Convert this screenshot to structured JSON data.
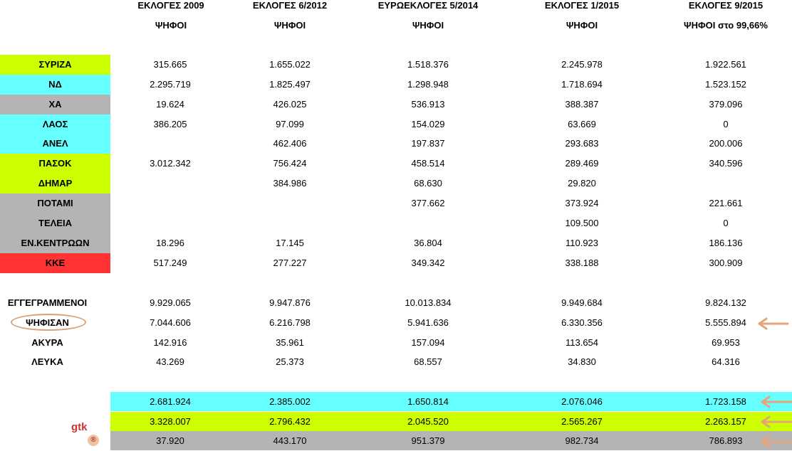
{
  "headers": [
    {
      "title": "ΕΚΛΟΓΕΣ 2009",
      "sub": "ΨΗΦΟΙ"
    },
    {
      "title": "ΕΚΛΟΓΕΣ 6/2012",
      "sub": "ΨΗΦΟΙ"
    },
    {
      "title": "ΕΥΡΩΕΚΛΟΓΕΣ 5/2014",
      "sub": "ΨΗΦΟΙ"
    },
    {
      "title": "ΕΚΛΟΓΕΣ 1/2015",
      "sub": "ΨΗΦΟΙ"
    },
    {
      "title": "ΕΚΛΟΓΕΣ 9/2015",
      "sub": "ΨΗΦΟΙ στο 99,66%"
    }
  ],
  "parties": [
    {
      "name": "ΣΥΡΙΖΑ",
      "color": "#ccff00",
      "values": [
        "315.665",
        "1.655.022",
        "1.518.376",
        "2.245.978",
        "1.922.561"
      ]
    },
    {
      "name": "ΝΔ",
      "color": "#66ffff",
      "values": [
        "2.295.719",
        "1.825.497",
        "1.298.948",
        "1.718.694",
        "1.523.152"
      ]
    },
    {
      "name": "ΧΑ",
      "color": "#b4b4b4",
      "values": [
        "19.624",
        "426.025",
        "536.913",
        "388.387",
        "379.096"
      ]
    },
    {
      "name": "ΛΑΟΣ",
      "color": "#66ffff",
      "values": [
        "386.205",
        "97.099",
        "154.029",
        "63.669",
        "0"
      ]
    },
    {
      "name": "ΑΝΕΛ",
      "color": "#66ffff",
      "values": [
        "",
        "462.406",
        "197.837",
        "293.683",
        "200.006"
      ]
    },
    {
      "name": "ΠΑΣΟΚ",
      "color": "#ccff00",
      "values": [
        "3.012.342",
        "756.424",
        "458.514",
        "289.469",
        "340.596"
      ]
    },
    {
      "name": "ΔΗΜΑΡ",
      "color": "#ccff00",
      "values": [
        "",
        "384.986",
        "68.630",
        "29.820",
        ""
      ]
    },
    {
      "name": "ΠΟΤΑΜΙ",
      "color": "#b4b4b4",
      "values": [
        "",
        "",
        "377.662",
        "373.924",
        "221.661"
      ]
    },
    {
      "name": "ΤΕΛΕΙΑ",
      "color": "#b4b4b4",
      "values": [
        "",
        "",
        "",
        "109.500",
        "0"
      ]
    },
    {
      "name": "ΕΝ.ΚΕΝΤΡΩΩΝ",
      "color": "#b4b4b4",
      "values": [
        "18.296",
        "17.145",
        "36.804",
        "110.923",
        "186.136"
      ]
    },
    {
      "name": "ΚΚΕ",
      "color": "#ff3333",
      "values": [
        "517.249",
        "277.227",
        "349.342",
        "338.188",
        "300.909"
      ]
    }
  ],
  "stats": [
    {
      "name": "ΕΓΓΕΓΡΑΜΜΕΝΟΙ",
      "values": [
        "9.929.065",
        "9.947.876",
        "10.013.834",
        "9.949.684",
        "9.824.132"
      ]
    },
    {
      "name": "ΨΗΦΙΣΑΝ",
      "values": [
        "7.044.606",
        "6.216.798",
        "5.941.636",
        "6.330.356",
        "5.555.894"
      ]
    },
    {
      "name": "ΑΚΥΡΑ",
      "values": [
        "142.916",
        "35.961",
        "157.094",
        "113.654",
        "69.953"
      ]
    },
    {
      "name": "ΛΕΥΚΑ",
      "values": [
        "43.269",
        "25.373",
        "68.557",
        "34.830",
        "64.316"
      ]
    }
  ],
  "totals": [
    {
      "color": "#66ffff",
      "values": [
        "2.681.924",
        "2.385.002",
        "1.650.814",
        "2.076.046",
        "1.723.158"
      ]
    },
    {
      "color": "#ccff00",
      "values": [
        "3.328.007",
        "2.796.432",
        "2.045.520",
        "2.565.267",
        "2.263.157"
      ]
    },
    {
      "color": "#b4b4b4",
      "values": [
        "37.920",
        "443.170",
        "951.379",
        "982.734",
        "786.893"
      ]
    }
  ],
  "logo": {
    "text": "gtk",
    "mark": "®"
  },
  "icons": {
    "arrow": "arrow-left-icon",
    "arrow_color": "#e5a47c"
  }
}
